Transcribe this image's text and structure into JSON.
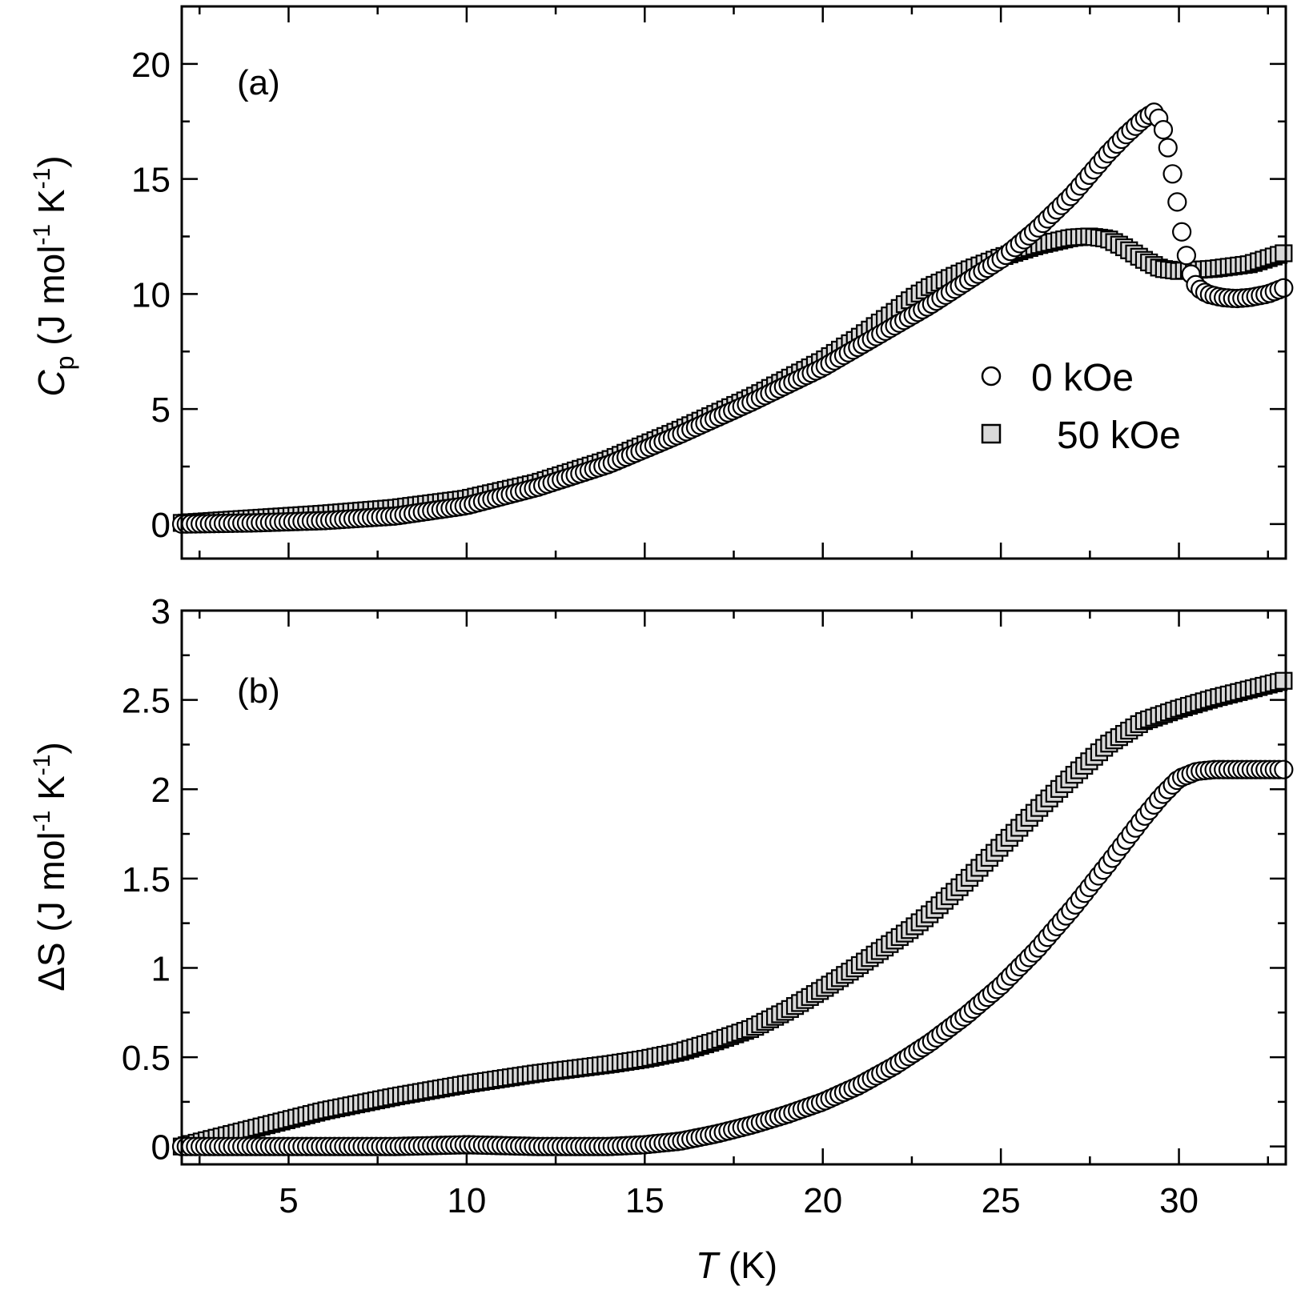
{
  "figure": {
    "xlabel": {
      "symbol": "T",
      "unit": " (K)"
    },
    "xlim": [
      2,
      33
    ],
    "xticks": [
      "5",
      "10",
      "15",
      "20",
      "25",
      "30"
    ],
    "marker_fill_square": "#d9d9d9",
    "marker_fill_circle": "#ffffff",
    "stroke_color": "#000000"
  },
  "chart_data": [
    {
      "type": "scatter",
      "panel_label": "(a)",
      "ylabel": {
        "symbol": "C",
        "subscript": "p",
        "unit_open": " (J mol",
        "sup1": "-1",
        "unit_mid": " K",
        "sup2": "-1",
        "unit_close": ")"
      },
      "ylim": [
        -1.5,
        22.5
      ],
      "yticks": [
        "0",
        "5",
        "10",
        "15",
        "20"
      ],
      "legend": {
        "position": "right-middle",
        "entries": [
          "0 kOe",
          "50 kOe"
        ]
      },
      "series": [
        {
          "name": "0 kOe",
          "marker": "circle",
          "x": [
            2,
            4,
            6,
            8,
            10,
            12,
            14,
            16,
            18,
            20,
            21,
            22,
            23,
            24,
            25,
            26,
            27,
            28,
            28.5,
            29,
            29.3,
            29.5,
            29.7,
            29.9,
            30.1,
            30.3,
            30.5,
            30.8,
            31.2,
            31.6,
            32,
            32.5,
            33
          ],
          "y": [
            0,
            0.05,
            0.15,
            0.35,
            0.8,
            1.6,
            2.6,
            3.9,
            5.3,
            6.8,
            7.7,
            8.6,
            9.5,
            10.5,
            11.5,
            12.8,
            14.3,
            16.1,
            16.9,
            17.6,
            17.9,
            17.5,
            16.3,
            14.5,
            12.5,
            11,
            10.3,
            10,
            9.85,
            9.8,
            9.85,
            10,
            10.3
          ]
        },
        {
          "name": "50 kOe",
          "marker": "square",
          "x": [
            2,
            4,
            6,
            8,
            10,
            12,
            14,
            16,
            18,
            20,
            21,
            22,
            22.5,
            23,
            24,
            25,
            26,
            27,
            27.5,
            28,
            28.5,
            29,
            29.5,
            30,
            31,
            32,
            33
          ],
          "y": [
            0.05,
            0.25,
            0.45,
            0.7,
            1.1,
            1.8,
            2.8,
            4.1,
            5.5,
            7.1,
            8.1,
            9.2,
            9.8,
            10.3,
            11,
            11.6,
            12.1,
            12.45,
            12.5,
            12.4,
            12,
            11.5,
            11.1,
            11,
            11.1,
            11.3,
            11.8
          ]
        }
      ]
    },
    {
      "type": "scatter",
      "panel_label": "(b)",
      "ylabel": {
        "symbol": "ΔS",
        "unit_open": " (J mol",
        "sup1": "-1",
        "unit_mid": " K",
        "sup2": "-1",
        "unit_close": ")"
      },
      "ylim": [
        -0.1,
        3
      ],
      "yticks": [
        "0",
        "0.5",
        "1",
        "1.5",
        "2",
        "2.5",
        "3"
      ],
      "series": [
        {
          "name": "0 kOe",
          "marker": "circle",
          "x": [
            2,
            5,
            8,
            10,
            12,
            14,
            15,
            16,
            17,
            18,
            19,
            20,
            21,
            22,
            23,
            24,
            25,
            26,
            27,
            28,
            29,
            29.5,
            30,
            30.5,
            31,
            32,
            33
          ],
          "y": [
            0,
            0,
            0,
            0.01,
            0,
            0,
            0.01,
            0.03,
            0.07,
            0.12,
            0.18,
            0.25,
            0.34,
            0.45,
            0.58,
            0.73,
            0.9,
            1.1,
            1.33,
            1.58,
            1.84,
            1.96,
            2.06,
            2.1,
            2.11,
            2.11,
            2.11
          ]
        },
        {
          "name": "50 kOe",
          "marker": "square",
          "x": [
            2,
            3,
            4,
            5,
            6,
            8,
            10,
            12,
            14,
            15,
            16,
            17,
            18,
            19,
            20,
            21,
            22,
            22.5,
            23,
            24,
            25,
            26,
            27,
            28,
            29,
            30,
            31,
            32,
            33
          ],
          "y": [
            0,
            0.05,
            0.1,
            0.15,
            0.2,
            0.28,
            0.35,
            0.41,
            0.46,
            0.49,
            0.53,
            0.59,
            0.66,
            0.76,
            0.88,
            1.01,
            1.15,
            1.22,
            1.3,
            1.48,
            1.68,
            1.88,
            2.07,
            2.25,
            2.38,
            2.45,
            2.51,
            2.56,
            2.61
          ]
        }
      ]
    }
  ]
}
